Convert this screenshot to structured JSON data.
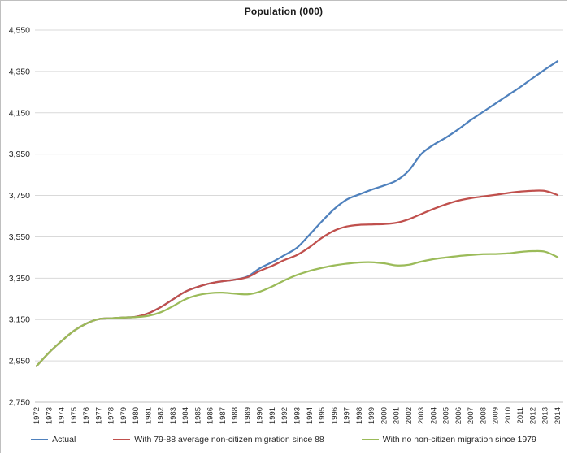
{
  "chart_data": {
    "type": "line",
    "title": "Population (000)",
    "xlabel": "",
    "ylabel": "",
    "grid": true,
    "legend_position": "bottom",
    "ylim": [
      2750,
      4550
    ],
    "yticks": [
      {
        "value": 2750,
        "label": "2,750"
      },
      {
        "value": 2950,
        "label": "2,950"
      },
      {
        "value": 3150,
        "label": "3,150"
      },
      {
        "value": 3350,
        "label": "3,350"
      },
      {
        "value": 3550,
        "label": "3,550"
      },
      {
        "value": 3750,
        "label": "3,750"
      },
      {
        "value": 3950,
        "label": "3,950"
      },
      {
        "value": 4150,
        "label": "4,150"
      },
      {
        "value": 4350,
        "label": "4,350"
      },
      {
        "value": 4550,
        "label": "4,550"
      }
    ],
    "x": [
      1972,
      1973,
      1974,
      1975,
      1976,
      1977,
      1978,
      1979,
      1980,
      1981,
      1982,
      1983,
      1984,
      1985,
      1986,
      1987,
      1988,
      1989,
      1990,
      1991,
      1992,
      1993,
      1994,
      1995,
      1996,
      1997,
      1998,
      1999,
      2000,
      2001,
      2002,
      2003,
      2004,
      2005,
      2006,
      2007,
      2008,
      2009,
      2010,
      2011,
      2012,
      2013,
      2014
    ],
    "series": [
      {
        "name": "Actual",
        "color": "#4F81BD",
        "values": [
          2925,
          2990,
          3045,
          3095,
          3130,
          3152,
          3156,
          3160,
          3163,
          3180,
          3210,
          3248,
          3285,
          3308,
          3325,
          3335,
          3343,
          3358,
          3398,
          3428,
          3462,
          3498,
          3560,
          3625,
          3685,
          3730,
          3755,
          3778,
          3798,
          3822,
          3870,
          3950,
          3995,
          4030,
          4070,
          4115,
          4155,
          4195,
          4235,
          4275,
          4318,
          4360,
          4400
        ]
      },
      {
        "name": "With 79-88 average non-citizen migration since 88",
        "color": "#C0504D",
        "values": [
          2925,
          2990,
          3045,
          3095,
          3130,
          3152,
          3156,
          3160,
          3163,
          3180,
          3210,
          3248,
          3285,
          3308,
          3325,
          3335,
          3343,
          3355,
          3385,
          3410,
          3438,
          3462,
          3500,
          3545,
          3580,
          3600,
          3608,
          3610,
          3612,
          3618,
          3635,
          3660,
          3685,
          3707,
          3725,
          3737,
          3745,
          3753,
          3762,
          3769,
          3773,
          3772,
          3752
        ]
      },
      {
        "name": "With no non-citizen migration since 1979",
        "color": "#9BBB59",
        "values": [
          2925,
          2990,
          3045,
          3095,
          3130,
          3152,
          3156,
          3160,
          3162,
          3168,
          3185,
          3215,
          3248,
          3268,
          3278,
          3280,
          3275,
          3272,
          3285,
          3310,
          3340,
          3366,
          3385,
          3400,
          3412,
          3420,
          3426,
          3427,
          3422,
          3412,
          3415,
          3430,
          3442,
          3450,
          3457,
          3462,
          3466,
          3467,
          3470,
          3477,
          3481,
          3478,
          3452
        ]
      }
    ],
    "colors": {
      "gridline": "#D9D9D9",
      "axis_line": "#BFBFBF",
      "tick_text": "#262626",
      "frame_border": "#BFBFBF",
      "background": "#FFFFFF"
    }
  }
}
